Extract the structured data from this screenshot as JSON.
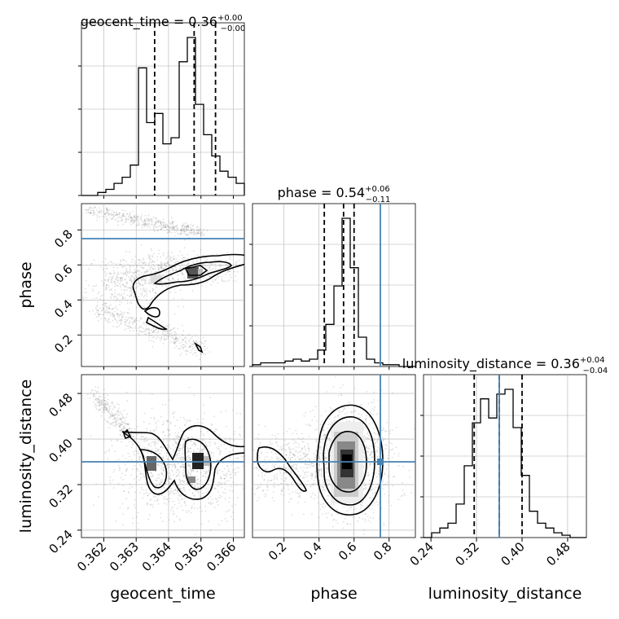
{
  "chart_data": {
    "type": "corner",
    "parameters": [
      "geocent_time",
      "phase",
      "luminosity_distance"
    ],
    "titles": [
      {
        "param": "geocent_time",
        "prefix": "geocent_time = 0.36",
        "sup": "+0.00",
        "sub": "−0.00"
      },
      {
        "param": "phase",
        "prefix": "phase = 0.54",
        "sup": "+0.06",
        "sub": "−0.11"
      },
      {
        "param": "luminosity_distance",
        "prefix": "luminosity_distance = 0.36",
        "sup": "+0.04",
        "sub": "−0.04"
      }
    ],
    "axes": {
      "geocent_time": {
        "label": "geocent_time",
        "range": [
          0.36131,
          0.36634
        ],
        "ticks": [
          0.362,
          0.363,
          0.364,
          0.365,
          0.366
        ],
        "tick_labels": [
          "0.362",
          "0.363",
          "0.364",
          "0.365",
          "0.366"
        ]
      },
      "phase": {
        "label": "phase",
        "range": [
          0.02,
          0.95
        ],
        "ticks": [
          0.2,
          0.4,
          0.6,
          0.8
        ],
        "tick_labels": [
          "0.2",
          "0.4",
          "0.6",
          "0.8"
        ]
      },
      "luminosity_distance": {
        "label": "luminosity_distance",
        "range": [
          0.227,
          0.513
        ],
        "ticks": [
          0.24,
          0.32,
          0.4,
          0.48
        ],
        "tick_labels": [
          "0.24",
          "0.32",
          "0.40",
          "0.48"
        ]
      }
    },
    "truths": {
      "phase": 0.75,
      "luminosity_distance": 0.36
    },
    "quantiles": {
      "geocent_time": [
        0.36357,
        0.36479,
        0.36545
      ],
      "phase": [
        0.43,
        0.54,
        0.6
      ],
      "luminosity_distance": [
        0.316,
        0.36,
        0.4
      ]
    },
    "histograms": {
      "geocent_time": {
        "bins": 20,
        "counts": [
          0,
          0,
          1,
          2,
          4,
          6,
          10,
          42,
          24,
          27,
          17,
          19,
          44,
          52,
          30,
          20,
          13,
          8,
          6,
          4
        ]
      },
      "phase": {
        "bins": 20,
        "counts": [
          1,
          2,
          2,
          2,
          3,
          4,
          3,
          4,
          9,
          23,
          44,
          81,
          54,
          16,
          4,
          2,
          1,
          1,
          0,
          0
        ]
      },
      "luminosity_distance": {
        "bins": 20,
        "counts": [
          0,
          2,
          4,
          6,
          14,
          30,
          48,
          58,
          50,
          60,
          62,
          46,
          26,
          11,
          6,
          4,
          2,
          1,
          0,
          0
        ]
      }
    },
    "grid": true,
    "colors": {
      "truth": "#4682b4",
      "hist": "#000000",
      "scatter": "#808080"
    }
  }
}
